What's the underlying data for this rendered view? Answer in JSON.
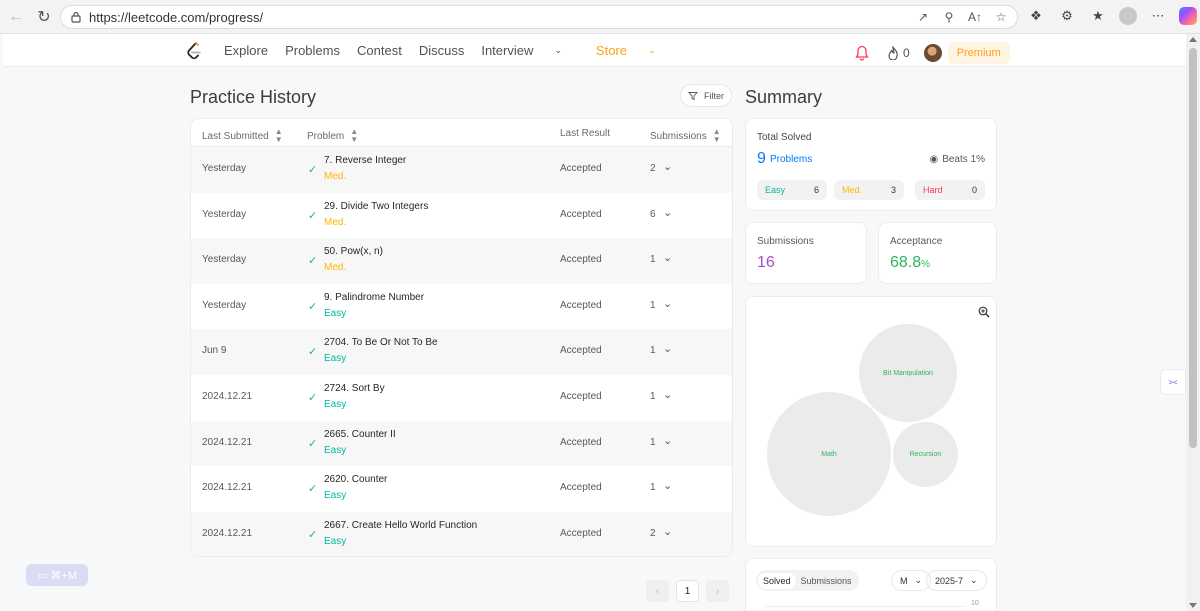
{
  "browser": {
    "url": "https://leetcode.com/progress/"
  },
  "nav": {
    "links": [
      "Explore",
      "Problems",
      "Contest",
      "Discuss",
      "Interview",
      "Store"
    ],
    "streak": "0",
    "premium": "Premium"
  },
  "history": {
    "title": "Practice History",
    "filter": "Filter",
    "columns": [
      "Last Submitted",
      "Problem",
      "Last Result",
      "Submissions"
    ],
    "rows": [
      {
        "date": "Yesterday",
        "title": "7. Reverse Integer",
        "difficulty": "Med.",
        "result": "Accepted",
        "submissions": "2"
      },
      {
        "date": "Yesterday",
        "title": "29. Divide Two Integers",
        "difficulty": "Med.",
        "result": "Accepted",
        "submissions": "6"
      },
      {
        "date": "Yesterday",
        "title": "50. Pow(x, n)",
        "difficulty": "Med.",
        "result": "Accepted",
        "submissions": "1"
      },
      {
        "date": "Yesterday",
        "title": "9. Palindrome Number",
        "difficulty": "Easy",
        "result": "Accepted",
        "submissions": "1"
      },
      {
        "date": "Jun 9",
        "title": "2704. To Be Or Not To Be",
        "difficulty": "Easy",
        "result": "Accepted",
        "submissions": "1"
      },
      {
        "date": "2024.12.21",
        "title": "2724. Sort By",
        "difficulty": "Easy",
        "result": "Accepted",
        "submissions": "1"
      },
      {
        "date": "2024.12.21",
        "title": "2665. Counter II",
        "difficulty": "Easy",
        "result": "Accepted",
        "submissions": "1"
      },
      {
        "date": "2024.12.21",
        "title": "2620. Counter",
        "difficulty": "Easy",
        "result": "Accepted",
        "submissions": "1"
      },
      {
        "date": "2024.12.21",
        "title": "2667. Create Hello World Function",
        "difficulty": "Easy",
        "result": "Accepted",
        "submissions": "2"
      }
    ],
    "page": "1"
  },
  "summary": {
    "title": "Summary",
    "total_solved_label": "Total Solved",
    "total_solved": "9",
    "problems_label": "Problems",
    "beats": "Beats 1%",
    "easy_label": "Easy",
    "easy": "6",
    "med_label": "Med.",
    "med": "3",
    "hard_label": "Hard",
    "hard": "0",
    "submissions_label": "Submissions",
    "submissions": "16",
    "acceptance_label": "Acceptance",
    "acceptance": "68.8",
    "acceptance_unit": "%",
    "topics": [
      "Bit Manipulation",
      "Math",
      "Recursion"
    ],
    "tabs": [
      "Solved",
      "Submissions"
    ],
    "period": "M",
    "month": "2025-7",
    "axis_tick": "10"
  },
  "shortcut": "⌘+M",
  "colors": {
    "accent": "#ffa116",
    "easy": "#00b8a3",
    "medium": "#ffb800",
    "hard": "#ff375f",
    "accepted_check": "#2db55d"
  }
}
